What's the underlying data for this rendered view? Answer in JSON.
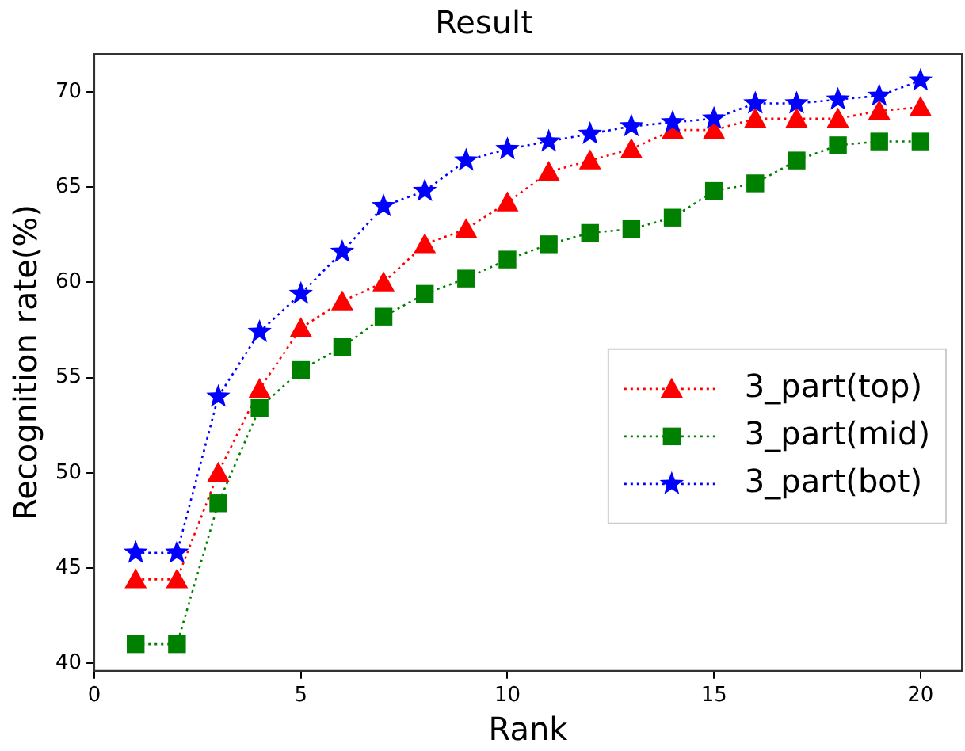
{
  "chart_data": {
    "type": "line",
    "title": "Result",
    "xlabel": "Rank",
    "ylabel": "Recognition rate(%)",
    "x": [
      1,
      2,
      3,
      4,
      5,
      6,
      7,
      8,
      9,
      10,
      11,
      12,
      13,
      14,
      15,
      16,
      17,
      18,
      19,
      20
    ],
    "xlim": [
      0,
      21
    ],
    "xticks": [
      0,
      5,
      10,
      15,
      20
    ],
    "ylim": [
      39.6,
      72
    ],
    "yticks": [
      40,
      45,
      50,
      55,
      60,
      65,
      70
    ],
    "grid": false,
    "legend": "center right",
    "line_style": "dotted",
    "series": [
      {
        "name": "3_part(top)",
        "color": "#ff0000",
        "marker": "triangle",
        "values": [
          44.4,
          44.4,
          50,
          54.4,
          57.6,
          59,
          60,
          62,
          62.8,
          64.2,
          65.8,
          66.4,
          67,
          68,
          68,
          68.6,
          68.6,
          68.6,
          69,
          69.2
        ]
      },
      {
        "name": "3_part(mid)",
        "color": "#008000",
        "marker": "square",
        "values": [
          41,
          41,
          48.4,
          53.4,
          55.4,
          56.6,
          58.2,
          59.4,
          60.2,
          61.2,
          62,
          62.6,
          62.8,
          63.4,
          64.8,
          65.2,
          66.4,
          67.2,
          67.4,
          67.4
        ]
      },
      {
        "name": "3_part(bot)",
        "color": "#0000ff",
        "marker": "star",
        "values": [
          45.8,
          45.8,
          54,
          57.4,
          59.4,
          61.6,
          64,
          64.8,
          66.4,
          67,
          67.4,
          67.8,
          68.2,
          68.4,
          68.6,
          69.4,
          69.4,
          69.6,
          69.8,
          70.6
        ]
      }
    ]
  }
}
